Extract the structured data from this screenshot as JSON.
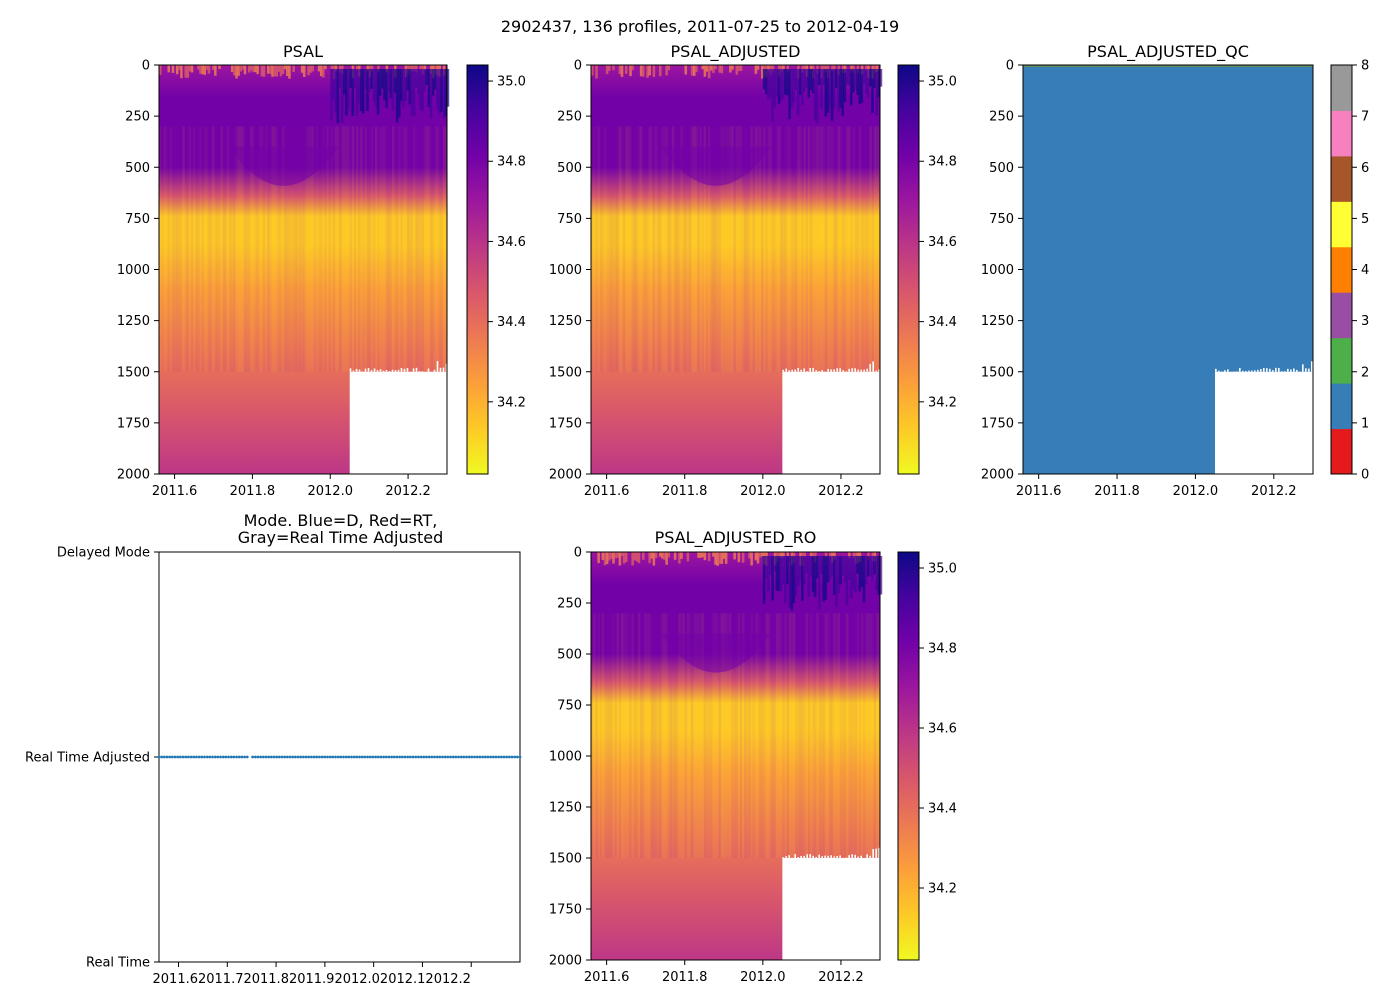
{
  "figure": {
    "title": "2902437, 136 profiles, 2011-07-25 to 2012-04-19"
  },
  "colors": {
    "plasma": [
      "#0d0887",
      "#46039f",
      "#7201a8",
      "#9c179e",
      "#bd3786",
      "#d8576b",
      "#ed7953",
      "#fb9f3a",
      "#fdca26",
      "#f0f921"
    ],
    "qc_classes": [
      "#e41a1c",
      "#377eb8",
      "#4daf4a",
      "#984ea3",
      "#ff7f00",
      "#ffff33",
      "#a65628",
      "#f781bf",
      "#999999"
    ],
    "mode_points": "#1f77b4"
  },
  "chart_data": [
    {
      "id": "psal",
      "type": "heatmap",
      "title": "PSAL",
      "x_range": [
        2011.56,
        2012.3
      ],
      "x_ticks": [
        "2011.6",
        "2011.8",
        "2012.0",
        "2012.2"
      ],
      "y_range": [
        0,
        2000
      ],
      "y_inverted": true,
      "y_ticks": [
        "0",
        "250",
        "500",
        "750",
        "1000",
        "1250",
        "1500",
        "1750",
        "2000"
      ],
      "missing_region": {
        "x_from": 2012.05,
        "depth_from": 1500,
        "depth_to": 2000
      },
      "colorbar": {
        "range": [
          34.02,
          35.04
        ],
        "cmap": "plasma_r",
        "ticks": [
          "34.2",
          "34.4",
          "34.6",
          "34.8",
          "35.0"
        ]
      }
    },
    {
      "id": "psal-adjusted",
      "type": "heatmap",
      "title": "PSAL_ADJUSTED",
      "x_range": [
        2011.56,
        2012.3
      ],
      "x_ticks": [
        "2011.6",
        "2011.8",
        "2012.0",
        "2012.2"
      ],
      "y_range": [
        0,
        2000
      ],
      "y_inverted": true,
      "y_ticks": [
        "0",
        "250",
        "500",
        "750",
        "1000",
        "1250",
        "1500",
        "1750",
        "2000"
      ],
      "missing_region": {
        "x_from": 2012.05,
        "depth_from": 1500,
        "depth_to": 2000
      },
      "colorbar": {
        "range": [
          34.02,
          35.04
        ],
        "cmap": "plasma_r",
        "ticks": [
          "34.2",
          "34.4",
          "34.6",
          "34.8",
          "35.0"
        ]
      }
    },
    {
      "id": "psal-adjusted-qc",
      "type": "heatmap",
      "title": "PSAL_ADJUSTED_QC",
      "value": 1,
      "x_range": [
        2011.56,
        2012.3
      ],
      "x_ticks": [
        "2011.6",
        "2011.8",
        "2012.0",
        "2012.2"
      ],
      "y_range": [
        0,
        2000
      ],
      "y_inverted": true,
      "y_ticks": [
        "0",
        "250",
        "500",
        "750",
        "1000",
        "1250",
        "1500",
        "1750",
        "2000"
      ],
      "missing_region": {
        "x_from": 2012.05,
        "depth_from": 1500,
        "depth_to": 2000
      },
      "colorbar": {
        "range": [
          0,
          8
        ],
        "cmap": "qc_classes",
        "ticks": [
          "0",
          "1",
          "2",
          "3",
          "4",
          "5",
          "6",
          "7",
          "8"
        ]
      }
    },
    {
      "id": "mode",
      "type": "scatter",
      "title_lines": [
        "Mode. Blue=D, Red=RT,",
        "Gray=Real Time Adjusted"
      ],
      "x_range": [
        2011.56,
        2012.3
      ],
      "x_ticks": [
        "2011.62011.72011.82011.92012.02012.12012.2"
      ],
      "y_range": [
        0,
        2
      ],
      "y_ticks": [
        "Real Time",
        "Real Time Adjusted",
        "Delayed Mode"
      ],
      "series": [
        {
          "name": "Real Time Adjusted",
          "y": 1,
          "x_start": 2011.56,
          "x_end": 2012.3,
          "count": 136
        }
      ]
    },
    {
      "id": "psal-adjusted-ro",
      "type": "heatmap",
      "title": "PSAL_ADJUSTED_RO",
      "x_range": [
        2011.56,
        2012.3
      ],
      "x_ticks": [
        "2011.6",
        "2011.8",
        "2012.0",
        "2012.2"
      ],
      "y_range": [
        0,
        2000
      ],
      "y_inverted": true,
      "y_ticks": [
        "0",
        "250",
        "500",
        "750",
        "1000",
        "1250",
        "1500",
        "1750",
        "2000"
      ],
      "missing_region": {
        "x_from": 2012.05,
        "depth_from": 1500,
        "depth_to": 2000
      },
      "colorbar": {
        "range": [
          34.02,
          35.04
        ],
        "cmap": "plasma_r",
        "ticks": [
          "34.2",
          "34.4",
          "34.6",
          "34.8",
          "35.0"
        ]
      }
    }
  ]
}
